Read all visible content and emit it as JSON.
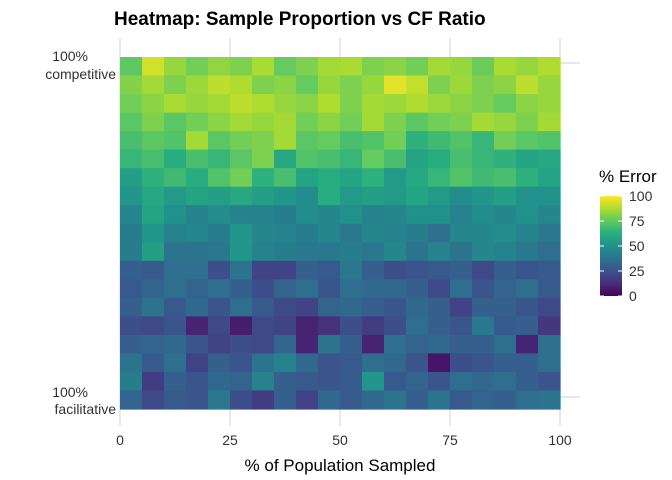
{
  "chart_data": {
    "type": "heatmap",
    "title": "Heatmap: Sample Proportion vs CF Ratio",
    "xlabel": "% of Population Sampled",
    "ylabel": "",
    "x_ticks": [
      "0",
      "25",
      "50",
      "75",
      "100"
    ],
    "x_tick_values": [
      0,
      25,
      50,
      75,
      100
    ],
    "xlim": [
      0,
      100
    ],
    "y_ticks": [
      {
        "line1": "100%",
        "line2": "competitive"
      },
      {
        "line1": "100%",
        "line2": "facilitative"
      }
    ],
    "grid": true,
    "legend": {
      "title": "% Error",
      "labels": [
        "100",
        "75",
        "50",
        "25",
        "0"
      ],
      "values": [
        100,
        75,
        50,
        25,
        0
      ],
      "range": [
        0,
        100
      ],
      "colormap": "viridis",
      "placement": "right"
    },
    "n_cols": 20,
    "n_rows": 19,
    "row_order": "top row = 100% competitive, bottom row = 100% facilitative",
    "z": [
      [
        75,
        93,
        84,
        78,
        83,
        80,
        87,
        76,
        80,
        86,
        87,
        80,
        82,
        78,
        86,
        84,
        77,
        87,
        84,
        88
      ],
      [
        81,
        86,
        80,
        85,
        90,
        88,
        80,
        82,
        76,
        84,
        80,
        84,
        96,
        91,
        80,
        85,
        80,
        82,
        90,
        84
      ],
      [
        78,
        82,
        87,
        84,
        86,
        90,
        88,
        84,
        82,
        88,
        80,
        86,
        85,
        88,
        85,
        82,
        80,
        76,
        82,
        84
      ],
      [
        74,
        80,
        74,
        78,
        82,
        86,
        84,
        86,
        78,
        82,
        78,
        86,
        80,
        74,
        78,
        80,
        86,
        84,
        80,
        86
      ],
      [
        70,
        74,
        72,
        86,
        74,
        78,
        80,
        86,
        74,
        76,
        70,
        72,
        78,
        64,
        68,
        72,
        66,
        78,
        74,
        72
      ],
      [
        66,
        70,
        62,
        70,
        66,
        74,
        80,
        60,
        72,
        70,
        66,
        76,
        70,
        58,
        62,
        70,
        66,
        64,
        58,
        60
      ],
      [
        56,
        64,
        68,
        62,
        72,
        78,
        64,
        70,
        58,
        62,
        58,
        64,
        54,
        60,
        66,
        72,
        68,
        70,
        64,
        58
      ],
      [
        52,
        60,
        54,
        58,
        56,
        60,
        56,
        52,
        48,
        62,
        54,
        56,
        54,
        58,
        54,
        48,
        52,
        56,
        50,
        50
      ],
      [
        46,
        58,
        50,
        44,
        48,
        44,
        44,
        42,
        48,
        46,
        50,
        44,
        46,
        50,
        50,
        44,
        48,
        46,
        50,
        46
      ],
      [
        42,
        52,
        44,
        46,
        42,
        52,
        46,
        44,
        42,
        46,
        40,
        46,
        44,
        42,
        36,
        46,
        46,
        48,
        44,
        40
      ],
      [
        42,
        56,
        38,
        38,
        40,
        52,
        44,
        42,
        40,
        40,
        42,
        40,
        46,
        38,
        44,
        38,
        46,
        44,
        40,
        36
      ],
      [
        30,
        28,
        36,
        36,
        24,
        38,
        20,
        20,
        30,
        28,
        40,
        30,
        24,
        26,
        28,
        30,
        22,
        30,
        26,
        28
      ],
      [
        28,
        32,
        36,
        32,
        36,
        30,
        24,
        32,
        36,
        26,
        36,
        34,
        34,
        30,
        22,
        36,
        26,
        32,
        36,
        28
      ],
      [
        30,
        38,
        28,
        34,
        26,
        36,
        28,
        22,
        20,
        32,
        34,
        30,
        26,
        34,
        30,
        20,
        30,
        30,
        26,
        22
      ],
      [
        24,
        22,
        26,
        10,
        22,
        8,
        22,
        20,
        10,
        14,
        24,
        18,
        24,
        36,
        30,
        26,
        40,
        28,
        30,
        16
      ],
      [
        30,
        32,
        34,
        26,
        20,
        24,
        22,
        32,
        10,
        38,
        30,
        10,
        36,
        32,
        34,
        30,
        30,
        36,
        10,
        36
      ],
      [
        38,
        28,
        36,
        20,
        30,
        26,
        38,
        44,
        34,
        26,
        28,
        36,
        34,
        26,
        6,
        24,
        26,
        30,
        30,
        36
      ],
      [
        42,
        18,
        30,
        26,
        34,
        32,
        44,
        30,
        28,
        26,
        28,
        52,
        28,
        32,
        26,
        36,
        34,
        36,
        30,
        26
      ],
      [
        32,
        22,
        28,
        26,
        40,
        24,
        18,
        30,
        20,
        34,
        28,
        34,
        38,
        30,
        38,
        28,
        32,
        30,
        36,
        38
      ]
    ]
  }
}
